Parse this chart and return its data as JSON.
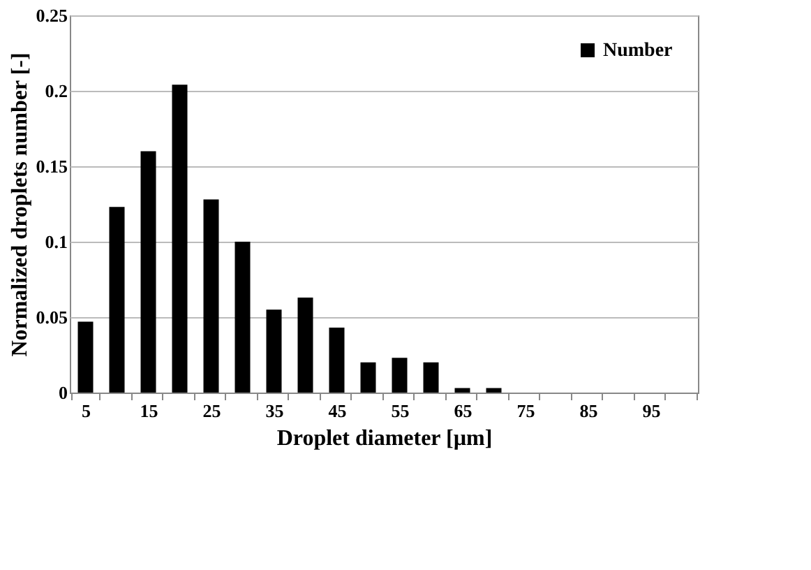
{
  "chart_data": {
    "type": "bar",
    "xlabel": "Droplet diameter [µm]",
    "ylabel": "Normalized droplets number [-]",
    "categories": [
      "5",
      null,
      "15",
      null,
      "25",
      null,
      "35",
      null,
      "45",
      null,
      "55",
      null,
      "65",
      null,
      "75",
      null,
      "85",
      null,
      "95",
      null
    ],
    "series": [
      {
        "name": "Number",
        "color": "#000000",
        "values": [
          0.047,
          0.123,
          0.16,
          0.204,
          0.128,
          0.1,
          0.055,
          0.063,
          0.043,
          0.02,
          0.023,
          0.02,
          0.003,
          0.003,
          0,
          0,
          0,
          0,
          0,
          0
        ]
      }
    ],
    "ylim": [
      0,
      0.25
    ],
    "yticks": [
      0,
      0.05,
      0.1,
      0.15,
      0.2,
      0.25
    ],
    "grid": "y",
    "legend": "top right"
  }
}
